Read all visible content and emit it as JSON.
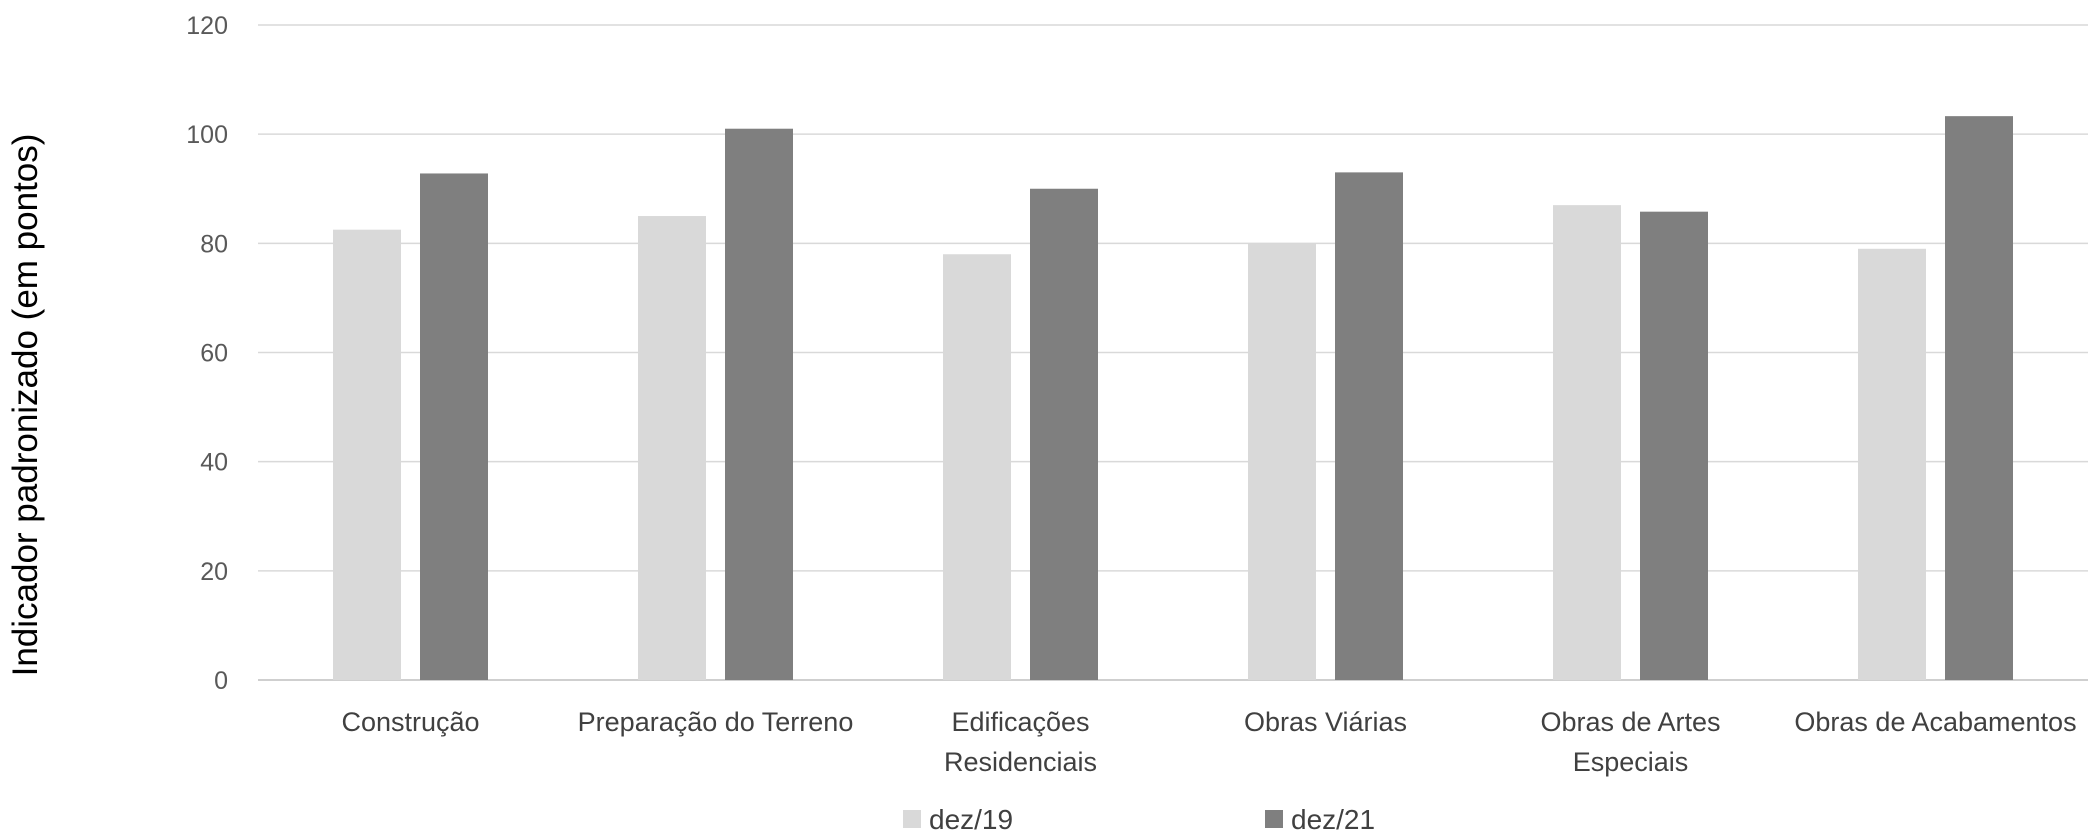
{
  "chart_data": {
    "type": "bar",
    "ylabel": "Indicador padronizado (em pontos)",
    "xlabel": "",
    "ylim": [
      0,
      120
    ],
    "yticks": [
      0,
      20,
      40,
      60,
      80,
      100,
      120
    ],
    "grid": true,
    "legend_position": "bottom",
    "categories": [
      [
        "Construção"
      ],
      [
        "Preparação do Terreno"
      ],
      [
        "Edificações",
        "Residenciais"
      ],
      [
        "Obras Viárias"
      ],
      [
        "Obras de Artes",
        "Especiais"
      ],
      [
        "Obras de Acabamentos"
      ]
    ],
    "series": [
      {
        "name": "dez/19",
        "color": "#d9d9d9",
        "values": [
          82.5,
          85.0,
          78.0,
          80.0,
          87.0,
          79.0
        ]
      },
      {
        "name": "dez/21",
        "color": "#7f7f7f",
        "values": [
          92.8,
          101.0,
          90.0,
          93.0,
          85.8,
          103.3
        ]
      }
    ]
  }
}
